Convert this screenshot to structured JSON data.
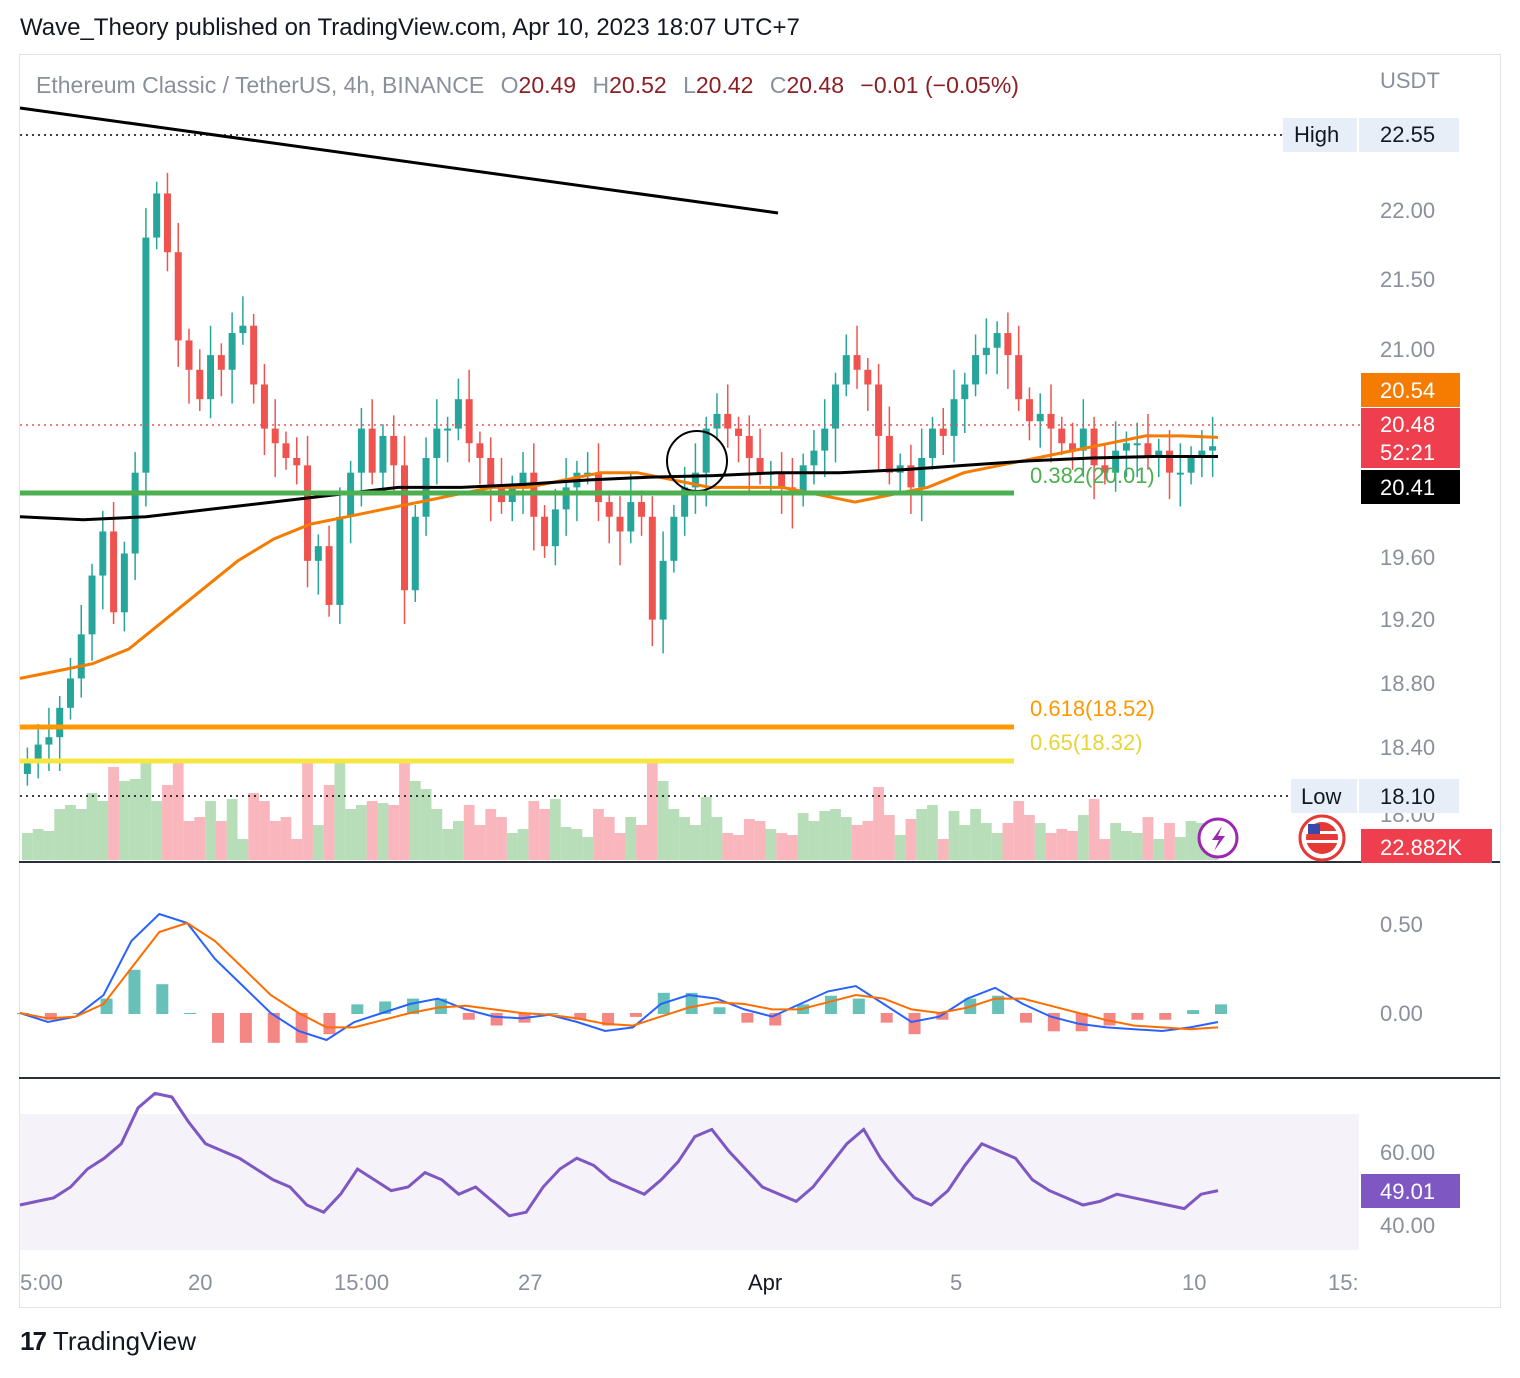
{
  "header": {
    "published_text": "Wave_Theory published on TradingView.com, Apr 10, 2023 18:07 UTC+7"
  },
  "legend": {
    "symbol_text": "Ethereum Classic / TetherUS, 4h, BINANCE",
    "open_label": "O",
    "open_value": "20.49",
    "high_label": "H",
    "high_value": "20.52",
    "low_label": "L",
    "low_value": "20.42",
    "close_label": "C",
    "close_value": "20.48",
    "change_value": "−0.01 (−0.05%)"
  },
  "price_axis": {
    "currency": "USDT",
    "ticks": [
      "22.00",
      "21.50",
      "21.00",
      "19.60",
      "19.20",
      "18.80",
      "18.40",
      "18.00"
    ],
    "high_label": "High",
    "high_value": "22.55",
    "low_label": "Low",
    "low_value": "18.10",
    "ema_orange_value": "20.54",
    "last_price": "20.48",
    "countdown": "52:21",
    "ema_black_value": "20.41",
    "volume_value": "22.882K"
  },
  "fib_levels": [
    {
      "label": "0.382(20.01)",
      "color": "#4caf50"
    },
    {
      "label": "0.618(18.52)",
      "color": "#ff9800"
    },
    {
      "label": "0.65(18.32)",
      "color": "#f5e642"
    }
  ],
  "macd_axis": {
    "ticks": [
      "0.50",
      "0.00"
    ]
  },
  "rsi_axis": {
    "ticks": [
      "60.00",
      "40.00"
    ],
    "current": "49.01"
  },
  "time_axis": {
    "ticks": [
      "5:00",
      "20",
      "15:00",
      "27",
      "Apr",
      "5",
      "10",
      "15:"
    ]
  },
  "footer": {
    "brand": "TradingView",
    "logo": "17"
  },
  "colors": {
    "up": "#26a69a",
    "down": "#ef5350",
    "ema_orange": "#f57c00",
    "ema_black": "#000000",
    "macd": "#2962ff",
    "signal": "#ff6d00",
    "rsi": "#7e57c2"
  },
  "chart_data": {
    "type": "candlestick",
    "title": "Ethereum Classic / TetherUS, 4h, BINANCE",
    "ylabel": "USDT",
    "ylim": [
      18.0,
      22.7
    ],
    "close_series": [
      18.35,
      18.45,
      18.5,
      18.7,
      18.9,
      19.2,
      19.6,
      19.9,
      19.35,
      19.75,
      20.3,
      21.9,
      22.2,
      21.8,
      21.2,
      21.0,
      20.8,
      21.1,
      21.0,
      21.25,
      21.3,
      20.9,
      20.6,
      20.5,
      20.4,
      20.35,
      19.7,
      19.8,
      19.4,
      20.0,
      20.3,
      20.6,
      20.3,
      20.55,
      20.35,
      19.5,
      20.0,
      20.4,
      20.6,
      20.6,
      20.8,
      20.5,
      20.4,
      20.2,
      20.1,
      20.2,
      20.3,
      20.0,
      19.8,
      20.05,
      20.2,
      20.3,
      20.3,
      20.1,
      20.0,
      19.9,
      20.1,
      20.0,
      19.3,
      19.7,
      20.0,
      20.2,
      20.3,
      20.6,
      20.7,
      20.6,
      20.55,
      20.4,
      20.3,
      20.3,
      20.2,
      20.15,
      20.35,
      20.45,
      20.6,
      20.9,
      21.1,
      21.0,
      20.9,
      20.55,
      20.3,
      20.35,
      20.2,
      20.4,
      20.6,
      20.55,
      20.8,
      20.9,
      21.1,
      21.15,
      21.25,
      21.1,
      20.8,
      20.65,
      20.7,
      20.6,
      20.5,
      20.45,
      20.6,
      20.35,
      20.3,
      20.45,
      20.5,
      20.5,
      20.4,
      20.45,
      20.3,
      20.3,
      20.4,
      20.45,
      20.48
    ],
    "ema_orange": [
      18.9,
      18.95,
      19.0,
      19.1,
      19.3,
      19.5,
      19.7,
      19.85,
      19.95,
      20.0,
      20.05,
      20.1,
      20.15,
      20.2,
      20.2,
      20.25,
      20.3,
      20.3,
      20.25,
      20.2,
      20.2,
      20.2,
      20.15,
      20.1,
      20.15,
      20.2,
      20.3,
      20.35,
      20.4,
      20.45,
      20.5,
      20.55,
      20.55,
      20.54
    ],
    "ema_black": [
      20.0,
      19.98,
      20.0,
      20.05,
      20.1,
      20.15,
      20.2,
      20.2,
      20.22,
      20.25,
      20.27,
      20.28,
      20.3,
      20.3,
      20.32,
      20.35,
      20.38,
      20.4,
      20.41,
      20.41
    ],
    "rsi_series": [
      45,
      46,
      47,
      50,
      55,
      58,
      62,
      72,
      76,
      75,
      68,
      62,
      60,
      58,
      55,
      52,
      50,
      45,
      43,
      48,
      55,
      52,
      49,
      50,
      54,
      52,
      48,
      50,
      46,
      42,
      43,
      50,
      55,
      58,
      56,
      52,
      50,
      48,
      52,
      57,
      64,
      66,
      60,
      55,
      50,
      48,
      46,
      50,
      56,
      62,
      66,
      58,
      52,
      47,
      45,
      49,
      56,
      62,
      60,
      58,
      52,
      49,
      47,
      45,
      46,
      48,
      47,
      46,
      45,
      44,
      48,
      49
    ],
    "macd_series": [
      0.0,
      -0.05,
      -0.02,
      0.1,
      0.4,
      0.55,
      0.5,
      0.3,
      0.15,
      0.0,
      -0.1,
      -0.15,
      -0.05,
      0.0,
      0.05,
      0.08,
      0.02,
      -0.02,
      -0.03,
      -0.01,
      -0.05,
      -0.1,
      -0.08,
      0.05,
      0.1,
      0.08,
      0.02,
      -0.02,
      0.05,
      0.12,
      0.15,
      0.05,
      -0.05,
      -0.02,
      0.08,
      0.14,
      0.05,
      -0.02,
      -0.06,
      -0.08,
      -0.09,
      -0.1,
      -0.08,
      -0.05
    ],
    "signal_series": [
      0.0,
      -0.03,
      -0.02,
      0.05,
      0.25,
      0.45,
      0.5,
      0.4,
      0.25,
      0.1,
      0.0,
      -0.08,
      -0.08,
      -0.04,
      0.0,
      0.03,
      0.04,
      0.02,
      0.0,
      -0.01,
      -0.03,
      -0.06,
      -0.07,
      -0.02,
      0.03,
      0.06,
      0.05,
      0.02,
      0.02,
      0.06,
      0.1,
      0.08,
      0.02,
      0.0,
      0.03,
      0.08,
      0.08,
      0.04,
      0.0,
      -0.04,
      -0.07,
      -0.08,
      -0.09,
      -0.08
    ]
  }
}
